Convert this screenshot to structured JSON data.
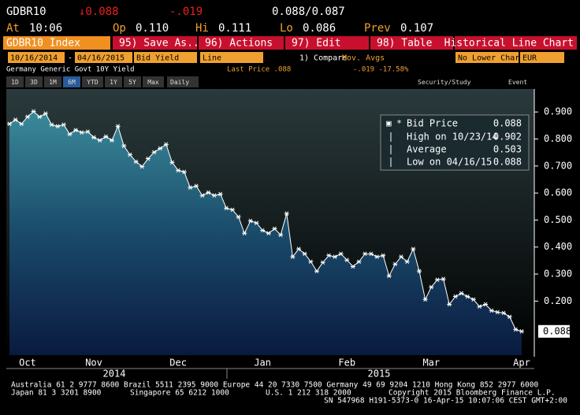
{
  "header": {
    "ticker": "GDBR10",
    "last": "↓0.088",
    "change": "-.019",
    "bid_ask": "0.088/0.087",
    "quote": [
      {
        "label": "At",
        "value": "10:06"
      },
      {
        "label": "Op",
        "value": "0.110"
      },
      {
        "label": "Hi",
        "value": "0.111"
      },
      {
        "label": "Lo",
        "value": "0.086"
      },
      {
        "label": "Prev",
        "value": "0.107"
      }
    ]
  },
  "toolbar": {
    "security": "GDBR10 Index",
    "buttons": [
      "95) Save As...",
      "96) Actions",
      "97) Edit",
      "98) Table"
    ],
    "view": "Historical Line Chart"
  },
  "settings": {
    "start": "10/16/2014",
    "dash": "-",
    "end": "04/16/2015",
    "field": "Bid Yield",
    "style": "Line",
    "compare": "1) Compare",
    "studies": "Mov. Avgs",
    "lower": "No Lower Chart",
    "currency": "EUR"
  },
  "info": {
    "name": "Germany Generic Govt 10Y Yield",
    "last_price": "Last Price .088",
    "change": "-.019  -17.58%"
  },
  "ranges": [
    "1D",
    "3D",
    "1M",
    "6M",
    "YTD",
    "1Y",
    "5Y",
    "Max"
  ],
  "period": "Daily",
  "tools": [
    "Security/Study",
    "Event"
  ],
  "chart_data": {
    "type": "line",
    "categories": [
      null,
      null,
      null,
      "Oct",
      null,
      null,
      null,
      null,
      null,
      null,
      null,
      null,
      null,
      null,
      "Nov",
      null,
      null,
      null,
      null,
      null,
      null,
      null,
      null,
      null,
      null,
      null,
      null,
      null,
      "Dec",
      null,
      null,
      null,
      null,
      null,
      null,
      null,
      null,
      null,
      null,
      null,
      null,
      null,
      "Jan",
      null,
      null,
      null,
      null,
      null,
      null,
      null,
      null,
      null,
      null,
      null,
      null,
      null,
      "Feb",
      null,
      null,
      null,
      null,
      null,
      null,
      null,
      null,
      null,
      null,
      null,
      null,
      null,
      "Mar",
      null,
      null,
      null,
      null,
      null,
      null,
      null,
      null,
      null,
      null,
      null,
      null,
      null,
      null,
      "Apr"
    ],
    "series": [
      {
        "name": "Bid Price",
        "color": "#ffffff",
        "values": [
          0.856,
          0.871,
          0.856,
          0.882,
          0.902,
          0.882,
          0.894,
          0.853,
          0.847,
          0.853,
          0.818,
          0.833,
          0.824,
          0.827,
          0.806,
          0.795,
          0.809,
          0.795,
          0.847,
          0.774,
          0.742,
          0.716,
          0.698,
          0.727,
          0.751,
          0.765,
          0.78,
          0.713,
          0.684,
          0.678,
          0.62,
          0.626,
          0.591,
          0.602,
          0.591,
          0.596,
          0.544,
          0.538,
          0.512,
          0.451,
          0.497,
          0.489,
          0.462,
          0.451,
          0.468,
          0.445,
          0.524,
          0.364,
          0.393,
          0.375,
          0.346,
          0.311,
          0.343,
          0.369,
          0.364,
          0.375,
          0.352,
          0.328,
          0.346,
          0.375,
          0.375,
          0.364,
          0.369,
          0.293,
          0.337,
          0.364,
          0.346,
          0.393,
          0.311,
          0.206,
          0.252,
          0.279,
          0.282,
          0.188,
          0.217,
          0.229,
          0.217,
          0.206,
          0.18,
          0.188,
          0.165,
          0.159,
          0.156,
          0.142,
          0.095,
          0.088
        ]
      }
    ],
    "ylim": [
      0,
      0.985
    ],
    "yticks": [
      {
        "value": 0.2,
        "label": "0.200"
      },
      {
        "value": 0.3,
        "label": "0.300"
      },
      {
        "value": 0.4,
        "label": "0.400"
      },
      {
        "value": 0.5,
        "label": "0.500"
      },
      {
        "value": 0.6,
        "label": "0.600"
      },
      {
        "value": 0.7,
        "label": "0.700"
      },
      {
        "value": 0.8,
        "label": "0.800"
      },
      {
        "value": 0.9,
        "label": "0.900"
      }
    ],
    "grid": false,
    "years": [
      "2014",
      "2015"
    ],
    "stats": [
      {
        "label": "High on 10/23/14",
        "value": "0.902"
      },
      {
        "label": "Average",
        "value": "0.503"
      },
      {
        "label": "Low on 04/16/15",
        "value": "0.088"
      }
    ]
  },
  "footer": {
    "line1": "Australia 61 2 9777 8600 Brazil 5511 2395 9000 Europe 44 20 7330 7500 Germany 49 69 9204 1210 Hong Kong 852 2977 6000",
    "line2": [
      "Japan 81 3 3201 8900",
      "Singapore 65 6212 1000",
      "U.S. 1 212 318 2000",
      "Copyright 2015 Bloomberg Finance L.P."
    ],
    "line3": "SN 547968 H191-5373-0 16-Apr-15 10:07:06 CEST GMT+2:00"
  }
}
